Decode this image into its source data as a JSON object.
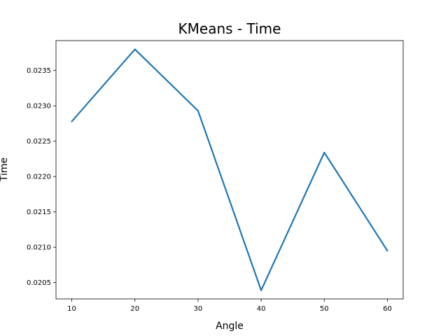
{
  "chart_data": {
    "type": "line",
    "title": "KMeans - Time",
    "xlabel": "Angle",
    "ylabel": "Time",
    "x": [
      10,
      20,
      30,
      40,
      50,
      60
    ],
    "series": [
      {
        "values": [
          0.02278,
          0.0238,
          0.02293,
          0.02039,
          0.02234,
          0.02095
        ],
        "color": "#1f77b4"
      }
    ],
    "xticks": [
      10,
      20,
      30,
      40,
      50,
      60
    ],
    "yticks": [
      "0.0205",
      "0.0210",
      "0.0215",
      "0.0220",
      "0.0225",
      "0.0230",
      "0.0235"
    ],
    "ytick_values": [
      0.0205,
      0.021,
      0.0215,
      0.022,
      0.0225,
      0.023,
      0.0235
    ],
    "xlim": [
      7.5,
      62.5
    ],
    "ylim": [
      0.020269,
      0.023923
    ],
    "grid": false,
    "legend": "none"
  }
}
